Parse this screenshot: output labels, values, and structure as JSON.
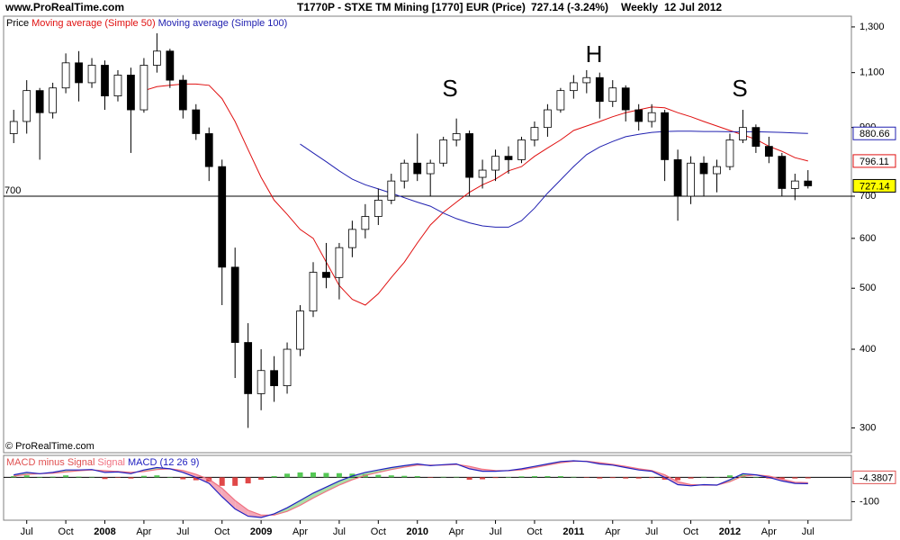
{
  "header": {
    "site": "www.ProRealTime.com",
    "title": "T1770P - STXE TM Mining [1770] EUR (Price)",
    "quote": "727.14 (-3.24%)",
    "period": "Weekly",
    "date": "12 Jul 2012"
  },
  "chart_data": [
    {
      "type": "candlestick",
      "name": "Price",
      "watermark": "© ProRealTime.com",
      "categories": [
        null,
        "Jul",
        null,
        null,
        "Oct",
        null,
        null,
        "2008",
        null,
        null,
        "Apr",
        null,
        null,
        "Jul",
        null,
        null,
        "Oct",
        null,
        null,
        "2009",
        null,
        null,
        "Apr",
        null,
        null,
        "Jul",
        null,
        null,
        "Oct",
        null,
        null,
        "2010",
        null,
        null,
        "Apr",
        null,
        null,
        "Jul",
        null,
        null,
        "Oct",
        null,
        null,
        "2011",
        null,
        null,
        "Apr",
        null,
        null,
        "Jul",
        null,
        null,
        "Oct",
        null,
        null,
        "2012",
        null,
        null,
        "Apr",
        null,
        null,
        "Jul"
      ],
      "open": [
        880,
        920,
        1030,
        950,
        1040,
        1140,
        1060,
        1130,
        1010,
        1090,
        960,
        1130,
        1190,
        1070,
        960,
        880,
        780,
        540,
        410,
        340,
        370,
        350,
        400,
        460,
        530,
        520,
        580,
        620,
        650,
        690,
        740,
        790,
        760,
        790,
        860,
        880,
        750,
        770,
        810,
        800,
        860,
        900,
        960,
        1030,
        1060,
        1080,
        990,
        1040,
        960,
        920,
        950,
        800,
        700,
        790,
        760,
        780,
        860,
        900,
        840,
        810,
        720,
        740
      ],
      "high": [
        960,
        1070,
        1040,
        1060,
        1180,
        1190,
        1160,
        1150,
        1110,
        1120,
        1160,
        1270,
        1200,
        1090,
        980,
        900,
        800,
        580,
        440,
        400,
        390,
        410,
        470,
        550,
        590,
        590,
        640,
        680,
        720,
        760,
        800,
        880,
        800,
        870,
        930,
        890,
        800,
        830,
        840,
        870,
        920,
        980,
        1040,
        1090,
        1110,
        1100,
        1070,
        1050,
        980,
        980,
        960,
        830,
        810,
        810,
        800,
        880,
        960,
        910,
        870,
        820,
        760,
        770
      ],
      "low": [
        850,
        880,
        800,
        930,
        1020,
        990,
        1040,
        960,
        990,
        820,
        950,
        1100,
        1040,
        930,
        860,
        740,
        470,
        360,
        300,
        320,
        330,
        340,
        390,
        450,
        500,
        480,
        560,
        600,
        630,
        680,
        720,
        740,
        700,
        780,
        840,
        700,
        720,
        740,
        760,
        790,
        840,
        870,
        950,
        1000,
        1020,
        930,
        970,
        920,
        890,
        900,
        740,
        640,
        680,
        700,
        710,
        770,
        850,
        820,
        790,
        700,
        690,
        720
      ],
      "close": [
        920,
        1030,
        950,
        1040,
        1140,
        1060,
        1130,
        1010,
        1090,
        960,
        1130,
        1190,
        1070,
        960,
        880,
        780,
        540,
        410,
        340,
        370,
        350,
        400,
        460,
        530,
        520,
        580,
        620,
        650,
        690,
        740,
        790,
        760,
        790,
        860,
        880,
        750,
        770,
        810,
        800,
        860,
        900,
        960,
        1030,
        1060,
        1080,
        990,
        1040,
        960,
        920,
        950,
        800,
        700,
        790,
        760,
        780,
        860,
        900,
        840,
        810,
        720,
        740,
        727.14
      ],
      "up_color": "#ffffff",
      "down_color": "#000000",
      "last_color": "#ffff00",
      "series": [
        {
          "name": "Moving average (Simple 50)",
          "color": "#e01010",
          "values": [
            null,
            null,
            null,
            null,
            null,
            null,
            null,
            null,
            null,
            null,
            1030,
            1045,
            1050,
            1055,
            1055,
            1050,
            1000,
            920,
            830,
            750,
            690,
            655,
            620,
            600,
            550,
            505,
            480,
            470,
            490,
            520,
            550,
            590,
            630,
            660,
            685,
            710,
            730,
            745,
            768,
            780,
            810,
            835,
            860,
            890,
            905,
            920,
            936,
            950,
            960,
            970,
            967,
            950,
            936,
            920,
            905,
            890,
            876,
            862,
            840,
            825,
            806,
            796.11
          ]
        },
        {
          "name": "Moving average (Simple 100)",
          "color": "#2020b0",
          "values": [
            null,
            null,
            null,
            null,
            null,
            null,
            null,
            null,
            null,
            null,
            null,
            null,
            null,
            null,
            null,
            null,
            null,
            null,
            null,
            null,
            null,
            null,
            847,
            820,
            794,
            768,
            745,
            730,
            719,
            708,
            696,
            685,
            675,
            658,
            645,
            635,
            628,
            625,
            625,
            640,
            670,
            708,
            743,
            780,
            815,
            838,
            855,
            870,
            878,
            884,
            887,
            888,
            888,
            887,
            887,
            886,
            886,
            886,
            885,
            884,
            882,
            880.66
          ]
        }
      ],
      "ylim": [
        274,
        1352
      ],
      "log_scale": true,
      "yticks": [
        300,
        400,
        500,
        600,
        700,
        900,
        {
          "value": 1100,
          "label": "1,100"
        },
        {
          "value": 1300,
          "label": "1,300"
        }
      ],
      "hlines": [
        {
          "value": 700,
          "label": "700"
        }
      ],
      "annotations": [
        "S",
        "H",
        "S"
      ]
    },
    {
      "type": "macd",
      "series": [
        {
          "name": "MACD minus Signal",
          "color": "#e05050",
          "kind": "histogram",
          "values": [
            5,
            8,
            0,
            3,
            8,
            3,
            2,
            -7,
            -2,
            -5,
            6,
            8,
            0,
            -8,
            -12,
            -17,
            -35,
            -35,
            -25,
            -10,
            5,
            15,
            20,
            20,
            18,
            17,
            15,
            12,
            10,
            8,
            6,
            5,
            -2,
            2,
            2,
            -10,
            -8,
            -3,
            1,
            4,
            5,
            5,
            5,
            2,
            -1,
            -5,
            -3,
            -5,
            -5,
            -3,
            -10,
            -12,
            -5,
            2,
            0,
            8,
            10,
            0,
            -5,
            -7,
            -5,
            -4.3807
          ]
        },
        {
          "name": "Signal",
          "color": "#f07080",
          "values": [
            5,
            12,
            15,
            17,
            22,
            27,
            30,
            27,
            24,
            20,
            24,
            32,
            35,
            28,
            12,
            -8,
            -45,
            -95,
            -135,
            -155,
            -155,
            -140,
            -115,
            -85,
            -58,
            -32,
            -10,
            8,
            20,
            32,
            42,
            50,
            50,
            50,
            53,
            45,
            33,
            28,
            27,
            31,
            40,
            50,
            60,
            66,
            66,
            60,
            53,
            45,
            35,
            28,
            10,
            -18,
            -30,
            -32,
            -32,
            -18,
            5,
            10,
            5,
            -8,
            -20,
            -22
          ]
        },
        {
          "name": "MACD (12 26 9)",
          "color": "#2020c0",
          "values": [
            10,
            20,
            15,
            20,
            30,
            30,
            32,
            20,
            22,
            15,
            30,
            40,
            35,
            20,
            0,
            -25,
            -80,
            -130,
            -160,
            -165,
            -150,
            -125,
            -95,
            -65,
            -40,
            -15,
            5,
            20,
            30,
            40,
            48,
            55,
            48,
            52,
            55,
            35,
            25,
            25,
            28,
            35,
            45,
            55,
            65,
            68,
            65,
            55,
            50,
            40,
            30,
            25,
            0,
            -30,
            -35,
            -30,
            -32,
            -10,
            15,
            10,
            0,
            -15,
            -25,
            -26
          ]
        }
      ],
      "up_color": "#55c855",
      "down_color": "#e04848",
      "fill_up_color": "#a8e0a8",
      "fill_down_color": "#f4a8b8",
      "ylim": [
        -165,
        90
      ],
      "yticks": [
        -100
      ]
    }
  ]
}
